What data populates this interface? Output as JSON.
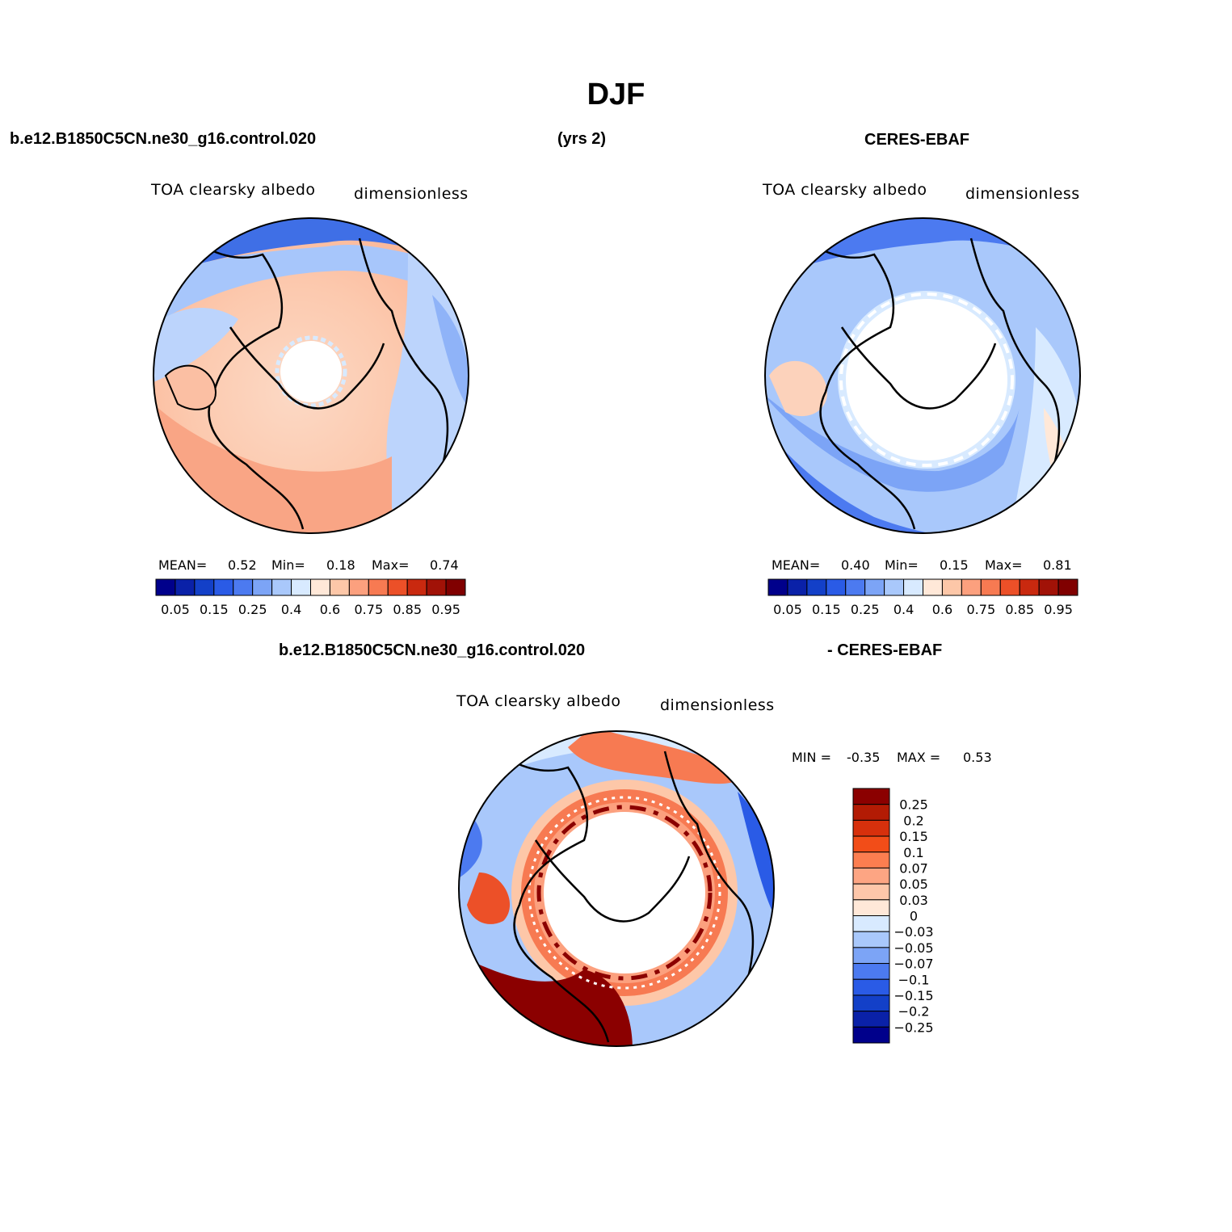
{
  "figure": {
    "season": "DJF",
    "case_name": "b.e12.B1850C5CN.ne30_g16.control.020",
    "years": "(yrs 2)",
    "obs_name": "CERES-EBAF",
    "diff_obs_label": "- CERES-EBAF"
  },
  "panels": {
    "model": {
      "variable": "TOA clearsky albedo",
      "units": "dimensionless",
      "mean_label": "MEAN=",
      "mean": "0.52",
      "min_label": "Min=",
      "min": "0.18",
      "max_label": "Max=",
      "max": "0.74"
    },
    "obs": {
      "variable": "TOA clearsky albedo",
      "units": "dimensionless",
      "mean_label": "MEAN=",
      "mean": "0.40",
      "min_label": "Min=",
      "min": "0.15",
      "max_label": "Max=",
      "max": "0.81"
    },
    "diff": {
      "variable": "TOA clearsky albedo",
      "units": "dimensionless",
      "min_label": "MIN =",
      "min": "-0.35",
      "max_label": "MAX =",
      "max": "0.53"
    }
  },
  "colorbars": {
    "abs_colors": [
      "#00008b",
      "#0a21a8",
      "#1340c8",
      "#2a5be6",
      "#4c7af0",
      "#7ca4f6",
      "#a9c8fb",
      "#d8eaff",
      "#ffe8d8",
      "#fdc7a8",
      "#fca07e",
      "#f77a52",
      "#ec5028",
      "#c9290f",
      "#a11207",
      "#800000"
    ],
    "abs_ticks": [
      "0.05",
      "0.15",
      "0.25",
      "0.4",
      "0.6",
      "0.75",
      "0.85",
      "0.95"
    ],
    "diff_colors": [
      "#8b0000",
      "#b31b04",
      "#d7300c",
      "#f24d18",
      "#fc7e50",
      "#fda583",
      "#fec7aa",
      "#ffe8d8",
      "#d8eaff",
      "#a9c8fb",
      "#7ca4f6",
      "#4c7af0",
      "#2a5be6",
      "#1340c8",
      "#0a21a8",
      "#00008b"
    ],
    "diff_ticks": [
      "0.25",
      "0.2",
      "0.15",
      "0.1",
      "0.07",
      "0.05",
      "0.03",
      "0",
      "−0.03",
      "−0.05",
      "−0.07",
      "−0.1",
      "−0.15",
      "−0.2",
      "−0.25"
    ]
  }
}
